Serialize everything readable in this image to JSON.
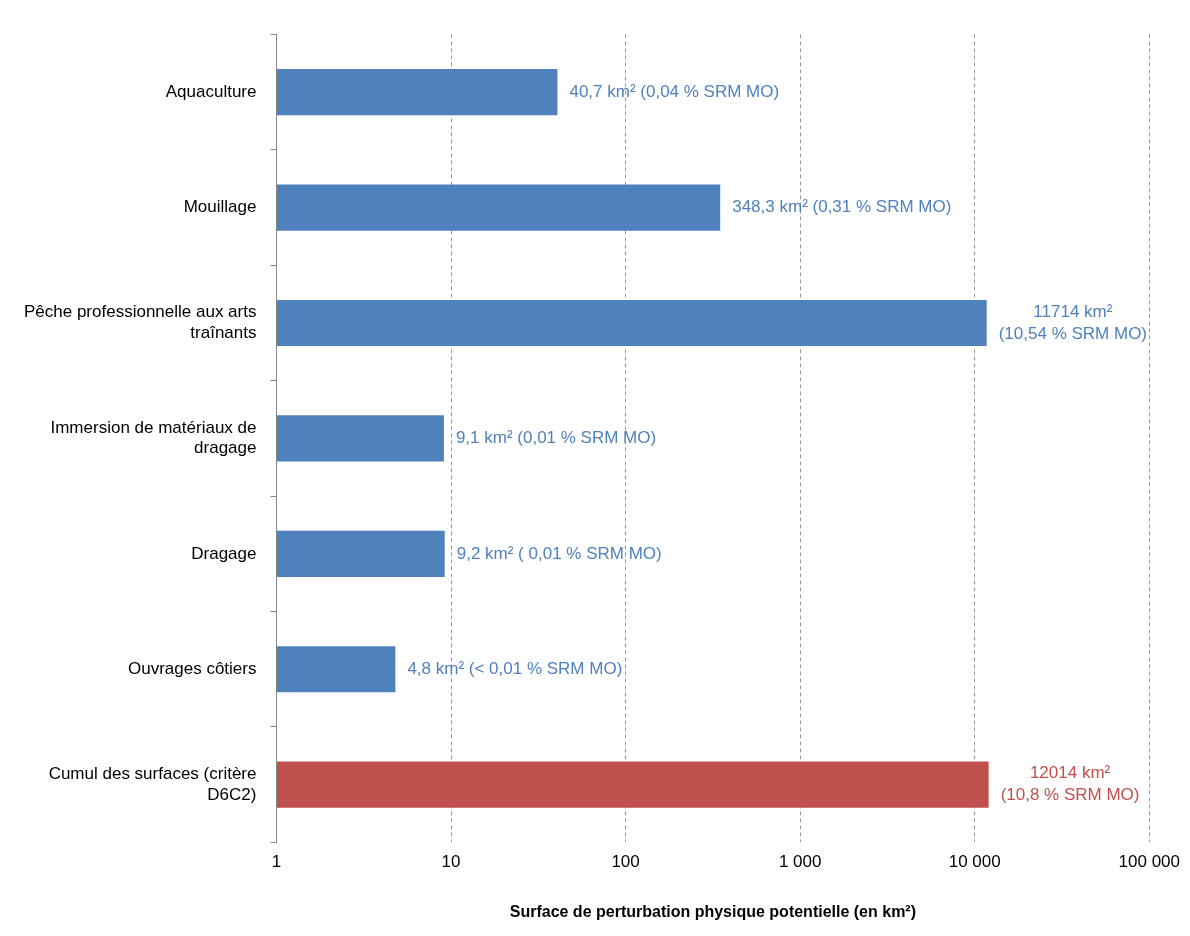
{
  "chart_data": {
    "type": "bar",
    "orientation": "horizontal",
    "log": "x",
    "categories": [
      "Aquaculture",
      "Mouillage",
      "Pêche professionnelle aux arts traînants",
      "Immersion de matériaux de dragage",
      "Dragage",
      "Ouvrages côtiers",
      "Cumul des surfaces (critère D6C2)"
    ],
    "values": [
      40.7,
      348.3,
      11714,
      9.1,
      9.2,
      4.8,
      12014
    ],
    "colors": [
      "#4f81bd",
      "#4f81bd",
      "#4f81bd",
      "#4f81bd",
      "#4f81bd",
      "#4f81bd",
      "#c0504d"
    ],
    "value_labels": [
      "40,7 km² (0,04 % SRM MO)",
      "348,3 km² (0,31 % SRM MO)",
      "11714 km²\n(10,54 % SRM MO)",
      "9,1 km² (0,01 % SRM MO)",
      "9,2 km² ( 0,01 % SRM MO)",
      "4,8 km² (< 0,01 % SRM MO)",
      "12014 km²\n(10,8 % SRM MO)"
    ],
    "xlabel": "Surface de perturbation physique potentielle (en km²)",
    "xlim": [
      1,
      100000
    ],
    "xticks": [
      1,
      10,
      100,
      {
        "value": 1000,
        "label": "1 000"
      },
      {
        "value": 10000,
        "label": "10 000"
      },
      {
        "value": 100000,
        "label": "100 000"
      }
    ],
    "grid": "x",
    "legend": false
  }
}
